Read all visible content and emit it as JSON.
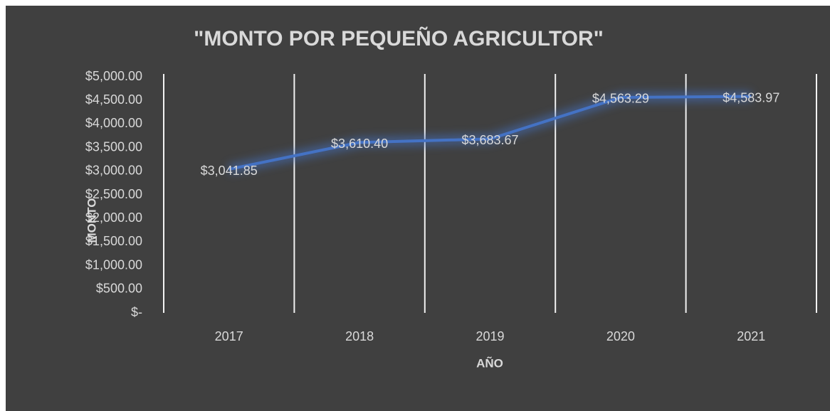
{
  "chart_data": {
    "type": "line",
    "title": "\"MONTO POR PEQUEÑO AGRICULTOR\"",
    "x_label": "AÑO",
    "y_label": "MONTO",
    "categories": [
      "2017",
      "2018",
      "2019",
      "2020",
      "2021"
    ],
    "values": [
      3041.85,
      3610.4,
      3683.67,
      4563.29,
      4583.97
    ],
    "value_labels": [
      "$3,041.85",
      "$3,610.40",
      "$3,683.67",
      "$4,563.29",
      "$4,583.97"
    ],
    "color": "#4472c4",
    "ylim": [
      0,
      5000
    ],
    "yticks": [
      {
        "value": 0,
        "label": "$-"
      },
      {
        "value": 500,
        "label": "$500.00"
      },
      {
        "value": 1000,
        "label": "$1,000.00"
      },
      {
        "value": 1500,
        "label": "$1,500.00"
      },
      {
        "value": 2000,
        "label": "$2,000.00"
      },
      {
        "value": 2500,
        "label": "$2,500.00"
      },
      {
        "value": 3000,
        "label": "$3,000.00"
      },
      {
        "value": 3500,
        "label": "$3,500.00"
      },
      {
        "value": 4000,
        "label": "$4,000.00"
      },
      {
        "value": 4500,
        "label": "$4,500.00"
      },
      {
        "value": 5000,
        "label": "$5,000.00"
      }
    ]
  }
}
